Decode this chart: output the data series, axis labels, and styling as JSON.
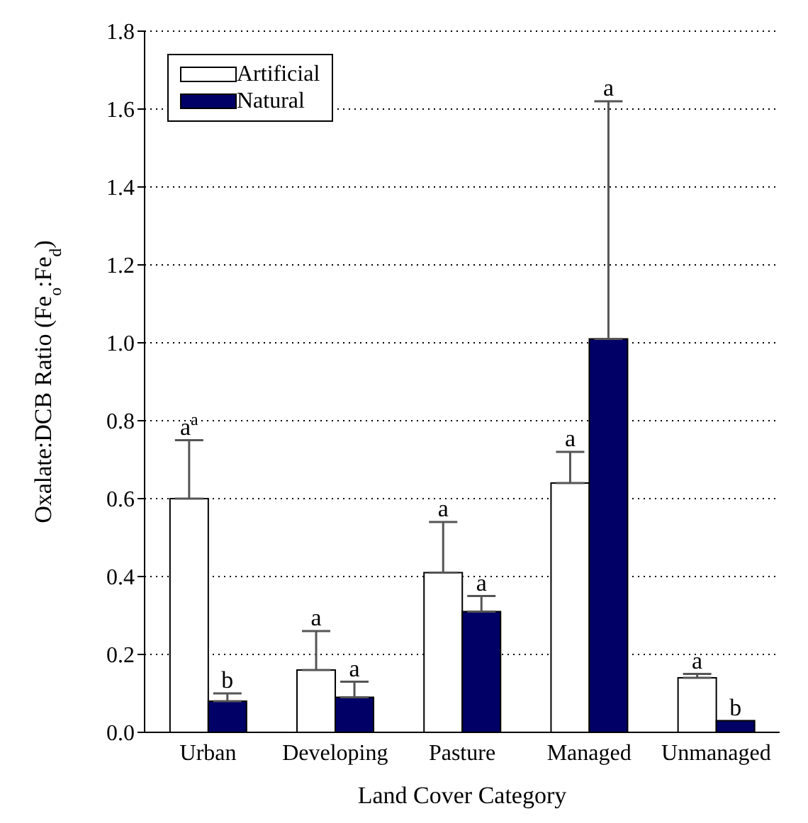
{
  "chart_data": {
    "type": "bar",
    "xlabel": "Land Cover Category",
    "ylabel": "Oxalate:DCB Ratio (Fe$_{o}$:Fe$_{d}$)",
    "categories": [
      "Urban",
      "Developing",
      "Pasture",
      "Managed",
      "Unmanaged"
    ],
    "series": [
      {
        "name": "Artificial",
        "color": "#ffffff",
        "values": [
          0.6,
          0.16,
          0.41,
          0.64,
          0.14
        ],
        "errors": [
          [
            0.6,
            0.75
          ],
          [
            0.16,
            0.26
          ],
          [
            0.41,
            0.54
          ],
          [
            0.64,
            0.72
          ],
          [
            0.14,
            0.15
          ]
        ]
      },
      {
        "name": "Natural",
        "color": "#000066",
        "values": [
          0.08,
          0.09,
          0.31,
          1.01,
          0.03
        ],
        "errors": [
          [
            0.08,
            0.1
          ],
          [
            0.09,
            0.13
          ],
          [
            0.31,
            0.35
          ],
          [
            1.01,
            1.62
          ],
          null
        ]
      }
    ],
    "ylim": [
      0,
      1.8
    ],
    "yticks": [
      {
        "value": 0,
        "label": "0.0"
      },
      {
        "value": 0.2,
        "label": "0.2"
      },
      {
        "value": 0.4,
        "label": "0.4"
      },
      {
        "value": 0.6,
        "label": "0.6"
      },
      {
        "value": 0.8,
        "label": "0.8"
      },
      {
        "value": 1.0,
        "label": "1.0"
      },
      {
        "value": 1.2,
        "label": "1.2"
      },
      {
        "value": 1.4,
        "label": "1.4"
      },
      {
        "value": 1.6,
        "label": "1.6"
      },
      {
        "value": 1.8,
        "label": "1.8"
      }
    ],
    "grid": "y",
    "legend": "top left",
    "annotations": [
      {
        "text": "a$^{a}$",
        "x": "Urban",
        "y": 0.75
      },
      {
        "text": "b",
        "x": "Urban",
        "y": 0.1
      },
      {
        "text": "a",
        "x": "Developing",
        "y": 0.26
      },
      {
        "text": "a",
        "x": "Developing",
        "y": 0.13
      },
      {
        "text": "a",
        "x": "Pasture",
        "y": 0.54
      },
      {
        "text": "a",
        "x": "Pasture",
        "y": 0.35
      },
      {
        "text": "a",
        "x": "Managed",
        "y": 0.72
      },
      {
        "text": "a",
        "x": "Managed",
        "y": 1.62
      },
      {
        "text": "a",
        "x": "Unmanaged",
        "y": 0.15
      },
      {
        "text": "b",
        "x": "Unmanaged",
        "y": 0.03
      }
    ]
  }
}
